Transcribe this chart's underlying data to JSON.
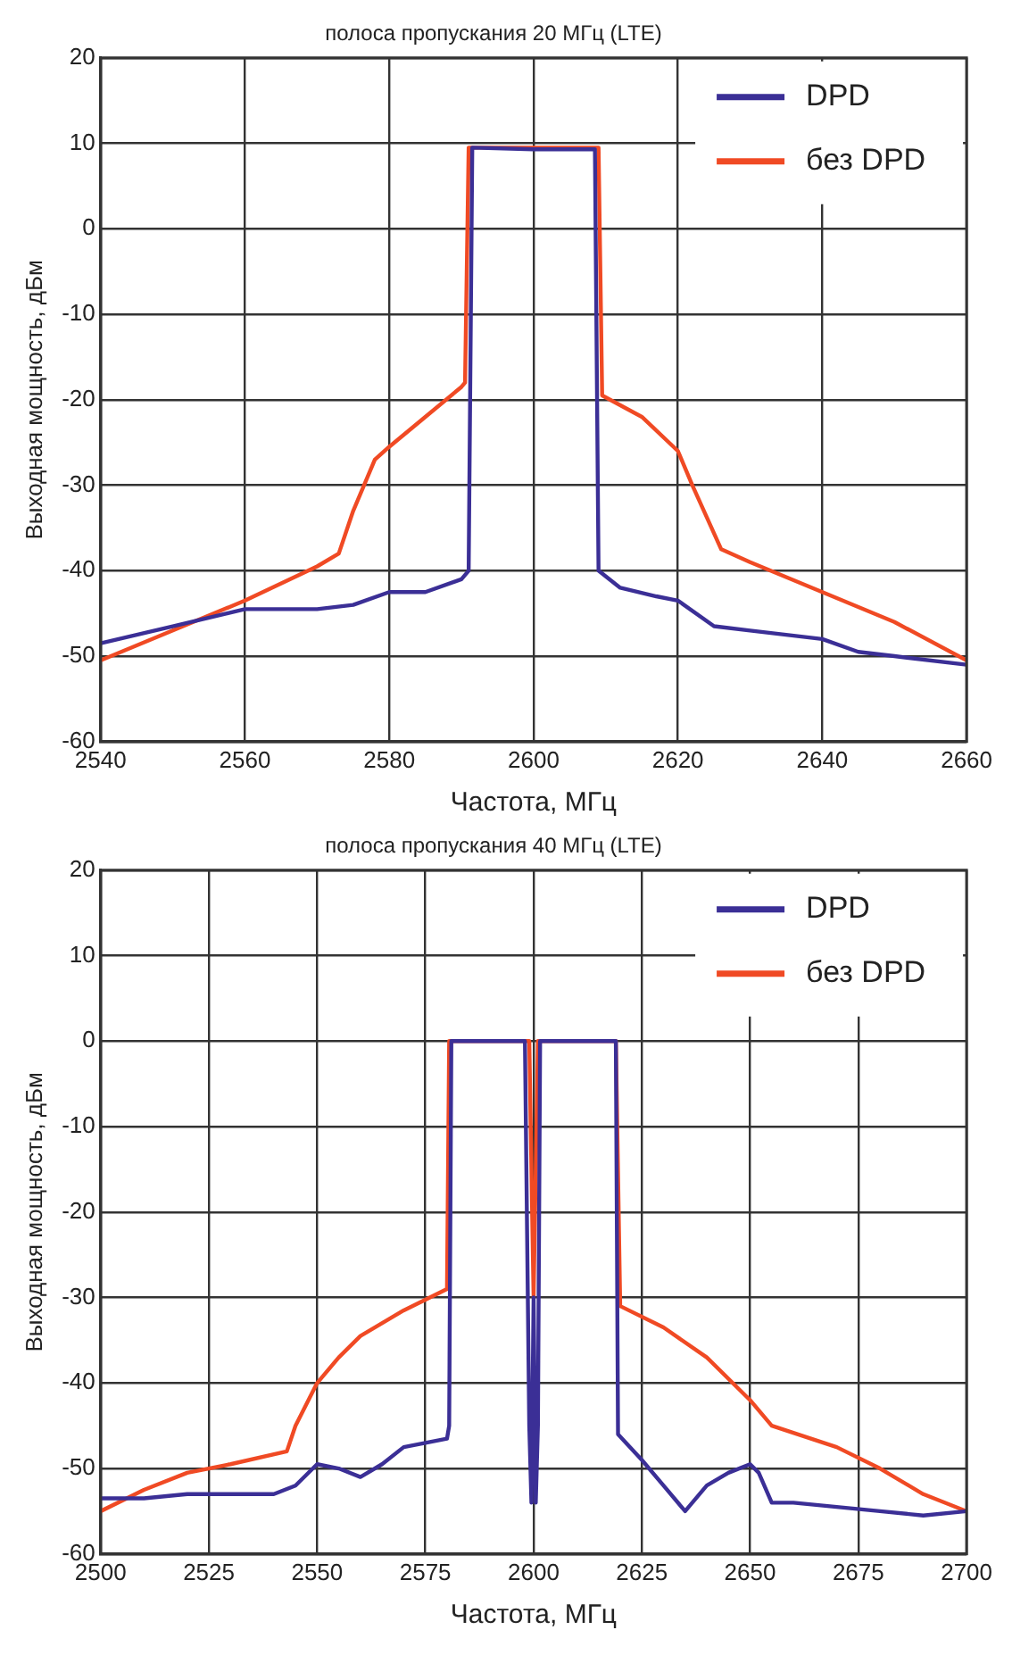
{
  "chart_data": [
    {
      "type": "line",
      "title": "полоса пропускания 20 МГц (LTE)",
      "xlabel": "Частота, МГц",
      "ylabel": "Выходная мощность, дБм",
      "xlim": [
        2540,
        2660
      ],
      "xticks": [
        2540,
        2560,
        2580,
        2600,
        2620,
        2640,
        2660
      ],
      "ylim": [
        -60,
        20
      ],
      "yticks": [
        -60,
        -50,
        -40,
        -30,
        -20,
        -10,
        0,
        10,
        20
      ],
      "grid": true,
      "legend": "top right",
      "marker": "none",
      "line_style": "solid",
      "series": [
        {
          "name": "DPD",
          "color": "#3b2f96",
          "x": [
            2540,
            2550,
            2560,
            2570,
            2575,
            2580,
            2585,
            2590,
            2591,
            2591.5,
            2600,
            2608.5,
            2609,
            2612,
            2617,
            2620,
            2625,
            2630,
            2640,
            2645,
            2650,
            2660
          ],
          "values": [
            -48.5,
            -46.5,
            -44.5,
            -44.5,
            -44,
            -42.5,
            -42.5,
            -41,
            -40,
            9.5,
            9.3,
            9.3,
            -40,
            -42,
            -43,
            -43.5,
            -46.5,
            -47,
            -48,
            -49.5,
            -50,
            -51
          ]
        },
        {
          "name": "без DPD",
          "color": "#f04a24",
          "x": [
            2540,
            2550,
            2560,
            2570,
            2573,
            2575,
            2578,
            2580,
            2585,
            2590,
            2590.5,
            2591,
            2609,
            2609.5,
            2615,
            2620,
            2622,
            2626,
            2630,
            2640,
            2650,
            2660
          ],
          "values": [
            -50.5,
            -47,
            -43.5,
            -39.5,
            -38,
            -33,
            -27,
            -25.5,
            -22,
            -18.5,
            -18,
            9.5,
            9.5,
            -19.5,
            -22,
            -26,
            -30,
            -37.5,
            -39,
            -42.5,
            -46,
            -50.5
          ]
        }
      ]
    },
    {
      "type": "line",
      "title": "полоса пропускания 40 МГц (LTE)",
      "xlabel": "Частота, МГц",
      "ylabel": "Выходная мощность, дБм",
      "xlim": [
        2500,
        2700
      ],
      "xticks": [
        2500,
        2525,
        2550,
        2575,
        2600,
        2625,
        2650,
        2675,
        2700
      ],
      "ylim": [
        -60,
        20
      ],
      "yticks": [
        -60,
        -50,
        -40,
        -30,
        -20,
        -10,
        0,
        10,
        20
      ],
      "grid": true,
      "legend": "top right",
      "marker": "none",
      "line_style": "solid",
      "series": [
        {
          "name": "DPD",
          "color": "#3b2f96",
          "x": [
            2500,
            2510,
            2520,
            2530,
            2540,
            2545,
            2550,
            2555,
            2560,
            2565,
            2570,
            2580,
            2580.5,
            2581,
            2590,
            2598,
            2599,
            2599.5,
            2600,
            2600.5,
            2601,
            2601.5,
            2610,
            2619,
            2619.5,
            2625,
            2630,
            2635,
            2640,
            2645,
            2650,
            2652,
            2655,
            2660,
            2670,
            2680,
            2690,
            2700
          ],
          "values": [
            -53.5,
            -53.5,
            -53,
            -53,
            -53,
            -52,
            -49.5,
            -50,
            -51,
            -49.5,
            -47.5,
            -46.5,
            -45,
            0,
            0,
            0,
            -45,
            -54,
            -30,
            -54,
            -45,
            0,
            0,
            0,
            -46,
            -49,
            -52,
            -55,
            -52,
            -50.5,
            -49.5,
            -50.5,
            -54,
            -54,
            -54.5,
            -55,
            -55.5,
            -55
          ]
        },
        {
          "name": "без DPD",
          "color": "#f04a24",
          "x": [
            2500,
            2510,
            2520,
            2530,
            2543,
            2545,
            2550,
            2555,
            2560,
            2570,
            2580,
            2580.5,
            2599,
            2600,
            2601,
            2619,
            2620,
            2630,
            2640,
            2650,
            2655,
            2670,
            2680,
            2690,
            2700
          ],
          "values": [
            -55,
            -52.5,
            -50.5,
            -49.5,
            -48,
            -45,
            -40,
            -37,
            -34.5,
            -31.5,
            -29,
            0,
            0,
            -30,
            0,
            0,
            -31,
            -33.5,
            -37,
            -42,
            -45,
            -47.5,
            -50,
            -53,
            -55
          ]
        }
      ]
    }
  ]
}
